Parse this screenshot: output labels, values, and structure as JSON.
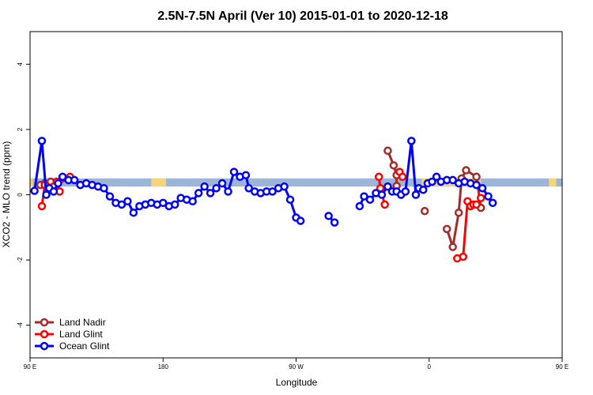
{
  "chart_data": {
    "type": "line",
    "title": "2.5N-7.5N April (Ver 10)   2015-01-01 to 2020-12-18",
    "xlabel": "Longitude",
    "ylabel": "XCO2 - MLO trend (ppm)",
    "xlim": [
      90,
      450
    ],
    "ylim": [
      -5,
      5
    ],
    "x_ticks": [
      {
        "value": 90,
        "label": "90 E"
      },
      {
        "value": 180,
        "label": "180"
      },
      {
        "value": 270,
        "label": "90 W"
      },
      {
        "value": 360,
        "label": "0"
      },
      {
        "value": 450,
        "label": "90 E"
      }
    ],
    "y_ticks": [
      {
        "value": -4,
        "label": "-4"
      },
      {
        "value": -2,
        "label": "-2"
      },
      {
        "value": 0,
        "label": "0"
      },
      {
        "value": 2,
        "label": "2"
      },
      {
        "value": 4,
        "label": "4"
      }
    ],
    "legend_position": "bottom-left",
    "band": {
      "y_range": [
        0.25,
        0.5
      ],
      "ocean_color": "#9db5d8",
      "land_color": "#f7d37a",
      "land_segments": [
        [
          82,
          92
        ],
        [
          355,
          395
        ],
        [
          441,
          446
        ],
        [
          172,
          182
        ]
      ]
    },
    "series": [
      {
        "name": "Land Nadir",
        "color": "#a52a2a",
        "segments": [
          [
            [
              97,
              0.3
            ]
          ],
          [
            [
              100,
              0.35
            ],
            [
              104,
              0.4
            ],
            [
              108,
              0.3
            ]
          ],
          [
            [
              332,
              1.35
            ],
            [
              336,
              0.9
            ],
            [
              338,
              0.6
            ],
            [
              338,
              0.27
            ]
          ],
          [
            [
              357,
              -0.5
            ]
          ],
          [
            [
              372,
              -1.05
            ],
            [
              376,
              -1.6
            ],
            [
              380,
              -0.55
            ],
            [
              382,
              0.5
            ],
            [
              385,
              0.75
            ],
            [
              392,
              0.55
            ],
            [
              395,
              -0.4
            ]
          ],
          [
            [
              466,
              0.35
            ],
            [
              472,
              0.3
            ],
            [
              476,
              0.55
            ]
          ]
        ]
      },
      {
        "name": "Land Glint",
        "color": "#ff0000",
        "segments": [
          [
            [
              98,
              -0.35
            ],
            [
              100,
              0.3
            ]
          ],
          [
            [
              106,
              0.25
            ],
            [
              110,
              0.1
            ]
          ],
          [
            [
              108,
              0.4
            ],
            [
              112,
              0.5
            ],
            [
              117,
              0.55
            ]
          ],
          [
            [
              326,
              0.55
            ],
            [
              327,
              0.2
            ],
            [
              330,
              -0.3
            ]
          ],
          [
            [
              340,
              0.7
            ],
            [
              342,
              0.55
            ]
          ],
          [
            [
              379,
              -1.95
            ],
            [
              383,
              -1.9
            ],
            [
              386,
              -0.2
            ],
            [
              388,
              -0.35
            ],
            [
              390,
              -0.3
            ],
            [
              392,
              -0.3
            ],
            [
              395,
              -0.1
            ]
          ],
          [
            [
              465,
              -0.35
            ],
            [
              468,
              0.3
            ]
          ],
          [
            [
              471,
              0.35
            ],
            [
              474,
              0.15
            ],
            [
              477,
              0.45
            ]
          ]
        ]
      },
      {
        "name": "Ocean Glint",
        "color": "#0000ff",
        "segments": [
          [
            [
              93,
              0.12
            ],
            [
              98,
              1.65
            ],
            [
              101,
              0.0
            ],
            [
              103,
              0.2
            ],
            [
              106,
              0.1
            ],
            [
              109,
              0.35
            ],
            [
              112,
              0.55
            ],
            [
              116,
              0.45
            ],
            [
              120,
              0.45
            ],
            [
              124,
              0.3
            ],
            [
              128,
              0.35
            ],
            [
              132,
              0.3
            ],
            [
              136,
              0.25
            ],
            [
              140,
              0.2
            ],
            [
              144,
              -0.05
            ],
            [
              148,
              -0.25
            ],
            [
              152,
              -0.3
            ],
            [
              156,
              -0.2
            ],
            [
              160,
              -0.55
            ],
            [
              164,
              -0.35
            ],
            [
              168,
              -0.3
            ],
            [
              172,
              -0.25
            ],
            [
              176,
              -0.3
            ],
            [
              180,
              -0.25
            ],
            [
              184,
              -0.35
            ],
            [
              188,
              -0.3
            ],
            [
              192,
              -0.1
            ],
            [
              196,
              -0.15
            ],
            [
              200,
              -0.2
            ],
            [
              204,
              0.05
            ],
            [
              208,
              0.25
            ],
            [
              212,
              0.05
            ],
            [
              216,
              0.2
            ],
            [
              220,
              0.35
            ],
            [
              224,
              0.1
            ],
            [
              228,
              0.7
            ],
            [
              232,
              0.55
            ],
            [
              236,
              0.6
            ],
            [
              238,
              0.2
            ],
            [
              242,
              0.1
            ],
            [
              246,
              0.05
            ],
            [
              250,
              0.1
            ],
            [
              254,
              0.1
            ],
            [
              258,
              0.2
            ],
            [
              262,
              0.25
            ],
            [
              266,
              -0.15
            ],
            [
              270,
              -0.7
            ],
            [
              273,
              -0.8
            ]
          ],
          [
            [
              292,
              -0.65
            ],
            [
              296,
              -0.85
            ]
          ],
          [
            [
              313,
              -0.35
            ],
            [
              316,
              -0.05
            ],
            [
              320,
              -0.15
            ],
            [
              324,
              0.05
            ],
            [
              328,
              0.0
            ],
            [
              332,
              0.25
            ],
            [
              335,
              0.1
            ],
            [
              338,
              0.1
            ],
            [
              341,
              0.0
            ],
            [
              344,
              0.1
            ],
            [
              348,
              1.65
            ],
            [
              351,
              0.0
            ]
          ],
          [
            [
              353,
              0.2
            ],
            [
              356,
              0.15
            ],
            [
              359,
              0.35
            ],
            [
              362,
              0.4
            ],
            [
              365,
              0.55
            ],
            [
              368,
              0.4
            ],
            [
              372,
              0.45
            ],
            [
              376,
              0.45
            ],
            [
              380,
              0.35
            ],
            [
              384,
              0.4
            ],
            [
              388,
              0.35
            ],
            [
              392,
              0.3
            ],
            [
              396,
              0.2
            ],
            [
              400,
              -0.05
            ],
            [
              403,
              -0.25
            ]
          ]
        ]
      }
    ]
  }
}
